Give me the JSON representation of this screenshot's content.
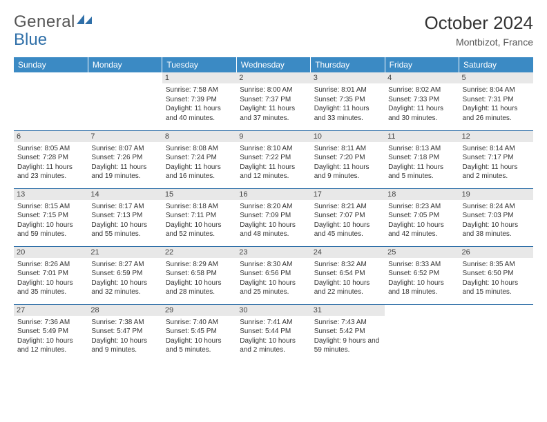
{
  "brand": {
    "part1": "General",
    "part2": "Blue"
  },
  "title": "October 2024",
  "location": "Montbizot, France",
  "colors": {
    "header_bg": "#3b8ac4",
    "header_text": "#ffffff",
    "rule": "#2f6fa8",
    "daynum_bg": "#e8e8e8",
    "text": "#333333",
    "brand_blue": "#2f6fa8"
  },
  "day_names": [
    "Sunday",
    "Monday",
    "Tuesday",
    "Wednesday",
    "Thursday",
    "Friday",
    "Saturday"
  ],
  "weeks": [
    [
      {
        "n": "",
        "sunrise": "",
        "sunset": "",
        "daylight": ""
      },
      {
        "n": "",
        "sunrise": "",
        "sunset": "",
        "daylight": ""
      },
      {
        "n": "1",
        "sunrise": "Sunrise: 7:58 AM",
        "sunset": "Sunset: 7:39 PM",
        "daylight": "Daylight: 11 hours and 40 minutes."
      },
      {
        "n": "2",
        "sunrise": "Sunrise: 8:00 AM",
        "sunset": "Sunset: 7:37 PM",
        "daylight": "Daylight: 11 hours and 37 minutes."
      },
      {
        "n": "3",
        "sunrise": "Sunrise: 8:01 AM",
        "sunset": "Sunset: 7:35 PM",
        "daylight": "Daylight: 11 hours and 33 minutes."
      },
      {
        "n": "4",
        "sunrise": "Sunrise: 8:02 AM",
        "sunset": "Sunset: 7:33 PM",
        "daylight": "Daylight: 11 hours and 30 minutes."
      },
      {
        "n": "5",
        "sunrise": "Sunrise: 8:04 AM",
        "sunset": "Sunset: 7:31 PM",
        "daylight": "Daylight: 11 hours and 26 minutes."
      }
    ],
    [
      {
        "n": "6",
        "sunrise": "Sunrise: 8:05 AM",
        "sunset": "Sunset: 7:28 PM",
        "daylight": "Daylight: 11 hours and 23 minutes."
      },
      {
        "n": "7",
        "sunrise": "Sunrise: 8:07 AM",
        "sunset": "Sunset: 7:26 PM",
        "daylight": "Daylight: 11 hours and 19 minutes."
      },
      {
        "n": "8",
        "sunrise": "Sunrise: 8:08 AM",
        "sunset": "Sunset: 7:24 PM",
        "daylight": "Daylight: 11 hours and 16 minutes."
      },
      {
        "n": "9",
        "sunrise": "Sunrise: 8:10 AM",
        "sunset": "Sunset: 7:22 PM",
        "daylight": "Daylight: 11 hours and 12 minutes."
      },
      {
        "n": "10",
        "sunrise": "Sunrise: 8:11 AM",
        "sunset": "Sunset: 7:20 PM",
        "daylight": "Daylight: 11 hours and 9 minutes."
      },
      {
        "n": "11",
        "sunrise": "Sunrise: 8:13 AM",
        "sunset": "Sunset: 7:18 PM",
        "daylight": "Daylight: 11 hours and 5 minutes."
      },
      {
        "n": "12",
        "sunrise": "Sunrise: 8:14 AM",
        "sunset": "Sunset: 7:17 PM",
        "daylight": "Daylight: 11 hours and 2 minutes."
      }
    ],
    [
      {
        "n": "13",
        "sunrise": "Sunrise: 8:15 AM",
        "sunset": "Sunset: 7:15 PM",
        "daylight": "Daylight: 10 hours and 59 minutes."
      },
      {
        "n": "14",
        "sunrise": "Sunrise: 8:17 AM",
        "sunset": "Sunset: 7:13 PM",
        "daylight": "Daylight: 10 hours and 55 minutes."
      },
      {
        "n": "15",
        "sunrise": "Sunrise: 8:18 AM",
        "sunset": "Sunset: 7:11 PM",
        "daylight": "Daylight: 10 hours and 52 minutes."
      },
      {
        "n": "16",
        "sunrise": "Sunrise: 8:20 AM",
        "sunset": "Sunset: 7:09 PM",
        "daylight": "Daylight: 10 hours and 48 minutes."
      },
      {
        "n": "17",
        "sunrise": "Sunrise: 8:21 AM",
        "sunset": "Sunset: 7:07 PM",
        "daylight": "Daylight: 10 hours and 45 minutes."
      },
      {
        "n": "18",
        "sunrise": "Sunrise: 8:23 AM",
        "sunset": "Sunset: 7:05 PM",
        "daylight": "Daylight: 10 hours and 42 minutes."
      },
      {
        "n": "19",
        "sunrise": "Sunrise: 8:24 AM",
        "sunset": "Sunset: 7:03 PM",
        "daylight": "Daylight: 10 hours and 38 minutes."
      }
    ],
    [
      {
        "n": "20",
        "sunrise": "Sunrise: 8:26 AM",
        "sunset": "Sunset: 7:01 PM",
        "daylight": "Daylight: 10 hours and 35 minutes."
      },
      {
        "n": "21",
        "sunrise": "Sunrise: 8:27 AM",
        "sunset": "Sunset: 6:59 PM",
        "daylight": "Daylight: 10 hours and 32 minutes."
      },
      {
        "n": "22",
        "sunrise": "Sunrise: 8:29 AM",
        "sunset": "Sunset: 6:58 PM",
        "daylight": "Daylight: 10 hours and 28 minutes."
      },
      {
        "n": "23",
        "sunrise": "Sunrise: 8:30 AM",
        "sunset": "Sunset: 6:56 PM",
        "daylight": "Daylight: 10 hours and 25 minutes."
      },
      {
        "n": "24",
        "sunrise": "Sunrise: 8:32 AM",
        "sunset": "Sunset: 6:54 PM",
        "daylight": "Daylight: 10 hours and 22 minutes."
      },
      {
        "n": "25",
        "sunrise": "Sunrise: 8:33 AM",
        "sunset": "Sunset: 6:52 PM",
        "daylight": "Daylight: 10 hours and 18 minutes."
      },
      {
        "n": "26",
        "sunrise": "Sunrise: 8:35 AM",
        "sunset": "Sunset: 6:50 PM",
        "daylight": "Daylight: 10 hours and 15 minutes."
      }
    ],
    [
      {
        "n": "27",
        "sunrise": "Sunrise: 7:36 AM",
        "sunset": "Sunset: 5:49 PM",
        "daylight": "Daylight: 10 hours and 12 minutes."
      },
      {
        "n": "28",
        "sunrise": "Sunrise: 7:38 AM",
        "sunset": "Sunset: 5:47 PM",
        "daylight": "Daylight: 10 hours and 9 minutes."
      },
      {
        "n": "29",
        "sunrise": "Sunrise: 7:40 AM",
        "sunset": "Sunset: 5:45 PM",
        "daylight": "Daylight: 10 hours and 5 minutes."
      },
      {
        "n": "30",
        "sunrise": "Sunrise: 7:41 AM",
        "sunset": "Sunset: 5:44 PM",
        "daylight": "Daylight: 10 hours and 2 minutes."
      },
      {
        "n": "31",
        "sunrise": "Sunrise: 7:43 AM",
        "sunset": "Sunset: 5:42 PM",
        "daylight": "Daylight: 9 hours and 59 minutes."
      },
      {
        "n": "",
        "sunrise": "",
        "sunset": "",
        "daylight": ""
      },
      {
        "n": "",
        "sunrise": "",
        "sunset": "",
        "daylight": ""
      }
    ]
  ]
}
